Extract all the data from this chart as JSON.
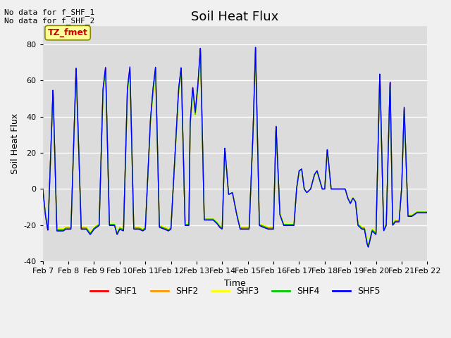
{
  "title": "Soil Heat Flux",
  "xlabel": "Time",
  "ylabel": "Soil Heat Flux",
  "xlim": [
    0,
    15
  ],
  "ylim": [
    -40,
    90
  ],
  "yticks": [
    -40,
    -20,
    0,
    20,
    40,
    60,
    80
  ],
  "xtick_labels": [
    "Feb 7",
    "Feb 8",
    "Feb 9",
    "Feb 10",
    "Feb 11",
    "Feb 12",
    "Feb 13",
    "Feb 14",
    "Feb 15",
    "Feb 16",
    "Feb 17",
    "Feb 18",
    "Feb 19",
    "Feb 20",
    "Feb 21",
    "Feb 22"
  ],
  "legend_labels": [
    "SHF1",
    "SHF2",
    "SHF3",
    "SHF4",
    "SHF5"
  ],
  "legend_colors": [
    "#ff0000",
    "#ff9900",
    "#ffff00",
    "#00cc00",
    "#0000ff"
  ],
  "line_colors": [
    "#ff0000",
    "#ff9900",
    "#ffff00",
    "#00cc00",
    "#0000ff"
  ],
  "annotation_text": "TZ_fmet",
  "annotation_color": "#cc0000",
  "annotation_bg": "#ffff99",
  "no_data_lines": [
    "No data for f_SHF_1",
    "No data for f_SHF_2"
  ],
  "plot_bg_color": "#dcdcdc",
  "fig_bg_color": "#f0f0f0",
  "title_fontsize": 13,
  "label_fontsize": 9,
  "tick_fontsize": 8,
  "waypoints": [
    [
      0.0,
      0
    ],
    [
      0.1,
      -14
    ],
    [
      0.2,
      -23
    ],
    [
      0.4,
      55
    ],
    [
      0.55,
      -23
    ],
    [
      0.8,
      -23
    ],
    [
      0.9,
      -22
    ],
    [
      1.1,
      -22
    ],
    [
      1.3,
      67
    ],
    [
      1.5,
      -22
    ],
    [
      1.7,
      -22
    ],
    [
      1.85,
      -25
    ],
    [
      2.0,
      -22
    ],
    [
      2.2,
      -20
    ],
    [
      2.35,
      55
    ],
    [
      2.45,
      67
    ],
    [
      2.6,
      -20
    ],
    [
      2.8,
      -20
    ],
    [
      2.9,
      -25
    ],
    [
      3.0,
      -22
    ],
    [
      3.15,
      -23
    ],
    [
      3.3,
      55
    ],
    [
      3.4,
      67
    ],
    [
      3.55,
      -22
    ],
    [
      3.75,
      -22
    ],
    [
      3.9,
      -23
    ],
    [
      4.0,
      -22
    ],
    [
      4.2,
      38
    ],
    [
      4.3,
      55
    ],
    [
      4.4,
      67
    ],
    [
      4.55,
      -21
    ],
    [
      4.75,
      -22
    ],
    [
      4.9,
      -23
    ],
    [
      5.0,
      -22
    ],
    [
      5.2,
      30
    ],
    [
      5.3,
      55
    ],
    [
      5.4,
      67
    ],
    [
      5.55,
      -20
    ],
    [
      5.7,
      -20
    ],
    [
      5.75,
      36
    ],
    [
      5.85,
      56
    ],
    [
      5.95,
      42
    ],
    [
      6.05,
      57
    ],
    [
      6.15,
      78
    ],
    [
      6.3,
      -17
    ],
    [
      6.5,
      -17
    ],
    [
      6.65,
      -17
    ],
    [
      6.8,
      -19
    ],
    [
      6.9,
      -21
    ],
    [
      7.0,
      -22
    ],
    [
      7.1,
      23
    ],
    [
      7.25,
      -3
    ],
    [
      7.4,
      -2
    ],
    [
      7.55,
      -13
    ],
    [
      7.7,
      -22
    ],
    [
      7.85,
      -22
    ],
    [
      7.95,
      -22
    ],
    [
      8.05,
      -22
    ],
    [
      8.2,
      30
    ],
    [
      8.3,
      78
    ],
    [
      8.45,
      -20
    ],
    [
      8.6,
      -21
    ],
    [
      8.8,
      -22
    ],
    [
      9.0,
      -22
    ],
    [
      9.1,
      35
    ],
    [
      9.25,
      -14
    ],
    [
      9.4,
      -20
    ],
    [
      9.6,
      -20
    ],
    [
      9.8,
      -20
    ],
    [
      9.9,
      0
    ],
    [
      10.0,
      10
    ],
    [
      10.1,
      11
    ],
    [
      10.2,
      0
    ],
    [
      10.3,
      -2
    ],
    [
      10.45,
      0
    ],
    [
      10.6,
      8
    ],
    [
      10.7,
      10
    ],
    [
      10.8,
      5
    ],
    [
      10.9,
      0
    ],
    [
      11.0,
      0
    ],
    [
      11.1,
      22
    ],
    [
      11.25,
      0
    ],
    [
      11.4,
      0
    ],
    [
      11.5,
      0
    ],
    [
      11.6,
      0
    ],
    [
      11.7,
      0
    ],
    [
      11.8,
      0
    ],
    [
      11.9,
      -5
    ],
    [
      12.0,
      -8
    ],
    [
      12.1,
      -5
    ],
    [
      12.2,
      -7
    ],
    [
      12.3,
      -20
    ],
    [
      12.45,
      -22
    ],
    [
      12.55,
      -22
    ],
    [
      12.65,
      -30
    ],
    [
      12.7,
      -32
    ],
    [
      12.85,
      -23
    ],
    [
      13.0,
      -25
    ],
    [
      13.15,
      65
    ],
    [
      13.3,
      -23
    ],
    [
      13.4,
      -20
    ],
    [
      13.55,
      60
    ],
    [
      13.65,
      -20
    ],
    [
      13.75,
      -18
    ],
    [
      13.9,
      -18
    ],
    [
      14.0,
      0
    ],
    [
      14.1,
      45
    ],
    [
      14.25,
      -15
    ],
    [
      14.4,
      -15
    ],
    [
      14.6,
      -13
    ],
    [
      14.8,
      -13
    ],
    [
      15.0,
      -13
    ]
  ]
}
